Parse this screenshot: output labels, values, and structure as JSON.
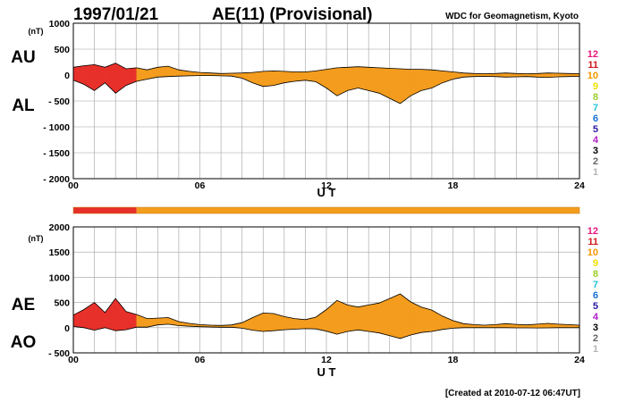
{
  "header": {
    "date": "1997/01/21",
    "title": "AE(11) (Provisional)",
    "source": "WDC for Geomagnetism, Kyoto"
  },
  "footer": {
    "created": "[Created at 2010-07-12 06:47UT]"
  },
  "level_legend": {
    "labels": [
      "12",
      "11",
      "10",
      "9",
      "8",
      "7",
      "6",
      "5",
      "4",
      "3",
      "2",
      "1"
    ],
    "colors": [
      "#e8177d",
      "#d01818",
      "#f39800",
      "#f0e000",
      "#9ccd2a",
      "#27c4d8",
      "#1670d0",
      "#2a1aa0",
      "#b020c8",
      "#000000",
      "#666666",
      "#b4b4b4"
    ]
  },
  "level_bar": {
    "segments": [
      {
        "from_ut": 0,
        "to_ut": 3,
        "level": 11,
        "color": "#e8302a"
      },
      {
        "from_ut": 3,
        "to_ut": 24,
        "level": 10,
        "color": "#f39c1e"
      }
    ]
  },
  "chart_data": [
    {
      "type": "area",
      "panel": "AU/AL",
      "unit": "(nT)",
      "left_labels": [
        "AU",
        "AL"
      ],
      "xlabel": "U T",
      "x_ticks": [
        "00",
        "06",
        "12",
        "18",
        "24"
      ],
      "xlim": [
        0,
        24
      ],
      "ylim": [
        -2000,
        1000
      ],
      "y_ticks": [
        1000,
        500,
        0,
        -500,
        -1000,
        -1500,
        -2000
      ],
      "grid": true,
      "series": [
        {
          "values_of": "AU",
          "x": [
            0,
            0.5,
            1,
            1.5,
            2,
            2.5,
            3,
            3.5,
            4,
            4.5,
            5,
            5.5,
            6,
            6.5,
            7,
            7.5,
            8,
            8.5,
            9,
            9.5,
            10,
            10.5,
            11,
            11.5,
            12,
            12.5,
            13,
            13.5,
            14,
            14.5,
            15,
            15.5,
            16,
            16.5,
            17,
            17.5,
            18,
            18.5,
            19,
            19.5,
            20,
            20.5,
            21,
            21.5,
            22,
            22.5,
            23,
            23.5,
            24
          ],
          "values": [
            150,
            180,
            200,
            150,
            230,
            120,
            140,
            100,
            150,
            170,
            100,
            70,
            50,
            40,
            30,
            35,
            40,
            50,
            70,
            80,
            70,
            60,
            60,
            80,
            110,
            140,
            150,
            160,
            150,
            140,
            130,
            120,
            110,
            110,
            100,
            80,
            60,
            40,
            30,
            25,
            30,
            40,
            30,
            25,
            30,
            40,
            35,
            30,
            25
          ]
        },
        {
          "values_of": "AL",
          "x": [
            0,
            0.5,
            1,
            1.5,
            2,
            2.5,
            3,
            3.5,
            4,
            4.5,
            5,
            5.5,
            6,
            6.5,
            7,
            7.5,
            8,
            8.5,
            9,
            9.5,
            10,
            10.5,
            11,
            11.5,
            12,
            12.5,
            13,
            13.5,
            14,
            14.5,
            15,
            15.5,
            16,
            16.5,
            17,
            17.5,
            18,
            18.5,
            19,
            19.5,
            20,
            20.5,
            21,
            21.5,
            22,
            22.5,
            23,
            23.5,
            24
          ],
          "values": [
            -100,
            -180,
            -300,
            -150,
            -350,
            -200,
            -120,
            -80,
            -40,
            -30,
            -20,
            -15,
            -10,
            -10,
            -15,
            -20,
            -60,
            -150,
            -220,
            -200,
            -150,
            -120,
            -100,
            -130,
            -250,
            -400,
            -300,
            -250,
            -300,
            -350,
            -450,
            -550,
            -400,
            -300,
            -250,
            -150,
            -80,
            -40,
            -30,
            -25,
            -30,
            -40,
            -35,
            -30,
            -40,
            -45,
            -35,
            -30,
            -25
          ]
        }
      ]
    },
    {
      "type": "area",
      "panel": "AE/AO",
      "unit": "(nT)",
      "left_labels": [
        "AE",
        "AO"
      ],
      "xlabel": "U T",
      "x_ticks": [
        "00",
        "06",
        "12",
        "18",
        "24"
      ],
      "xlim": [
        0,
        24
      ],
      "ylim": [
        -500,
        2000
      ],
      "y_ticks": [
        2000,
        1500,
        1000,
        500,
        0,
        -500
      ],
      "grid": true,
      "series": [
        {
          "values_of": "AE",
          "x": [
            0,
            0.5,
            1,
            1.5,
            2,
            2.5,
            3,
            3.5,
            4,
            4.5,
            5,
            5.5,
            6,
            6.5,
            7,
            7.5,
            8,
            8.5,
            9,
            9.5,
            10,
            10.5,
            11,
            11.5,
            12,
            12.5,
            13,
            13.5,
            14,
            14.5,
            15,
            15.5,
            16,
            16.5,
            17,
            17.5,
            18,
            18.5,
            19,
            19.5,
            20,
            20.5,
            21,
            21.5,
            22,
            22.5,
            23,
            23.5,
            24
          ],
          "values": [
            250,
            360,
            500,
            300,
            580,
            320,
            260,
            180,
            190,
            200,
            120,
            85,
            60,
            50,
            45,
            55,
            100,
            200,
            290,
            280,
            220,
            180,
            160,
            210,
            360,
            540,
            450,
            410,
            450,
            490,
            580,
            670,
            510,
            410,
            350,
            230,
            140,
            80,
            60,
            50,
            60,
            80,
            65,
            55,
            70,
            85,
            70,
            60,
            50
          ]
        },
        {
          "values_of": "AO",
          "x": [
            0,
            0.5,
            1,
            1.5,
            2,
            2.5,
            3,
            3.5,
            4,
            4.5,
            5,
            5.5,
            6,
            6.5,
            7,
            7.5,
            8,
            8.5,
            9,
            9.5,
            10,
            10.5,
            11,
            11.5,
            12,
            12.5,
            13,
            13.5,
            14,
            14.5,
            15,
            15.5,
            16,
            16.5,
            17,
            17.5,
            18,
            18.5,
            19,
            19.5,
            20,
            20.5,
            21,
            21.5,
            22,
            22.5,
            23,
            23.5,
            24
          ],
          "values": [
            25,
            0,
            -50,
            0,
            -60,
            -40,
            10,
            10,
            55,
            70,
            40,
            28,
            20,
            15,
            8,
            8,
            -10,
            -50,
            -75,
            -60,
            -40,
            -30,
            -20,
            -25,
            -70,
            -130,
            -75,
            -45,
            -75,
            -105,
            -160,
            -215,
            -145,
            -95,
            -75,
            -35,
            -10,
            0,
            0,
            0,
            0,
            0,
            -3,
            -3,
            -5,
            -3,
            0,
            0,
            0
          ]
        }
      ]
    }
  ]
}
